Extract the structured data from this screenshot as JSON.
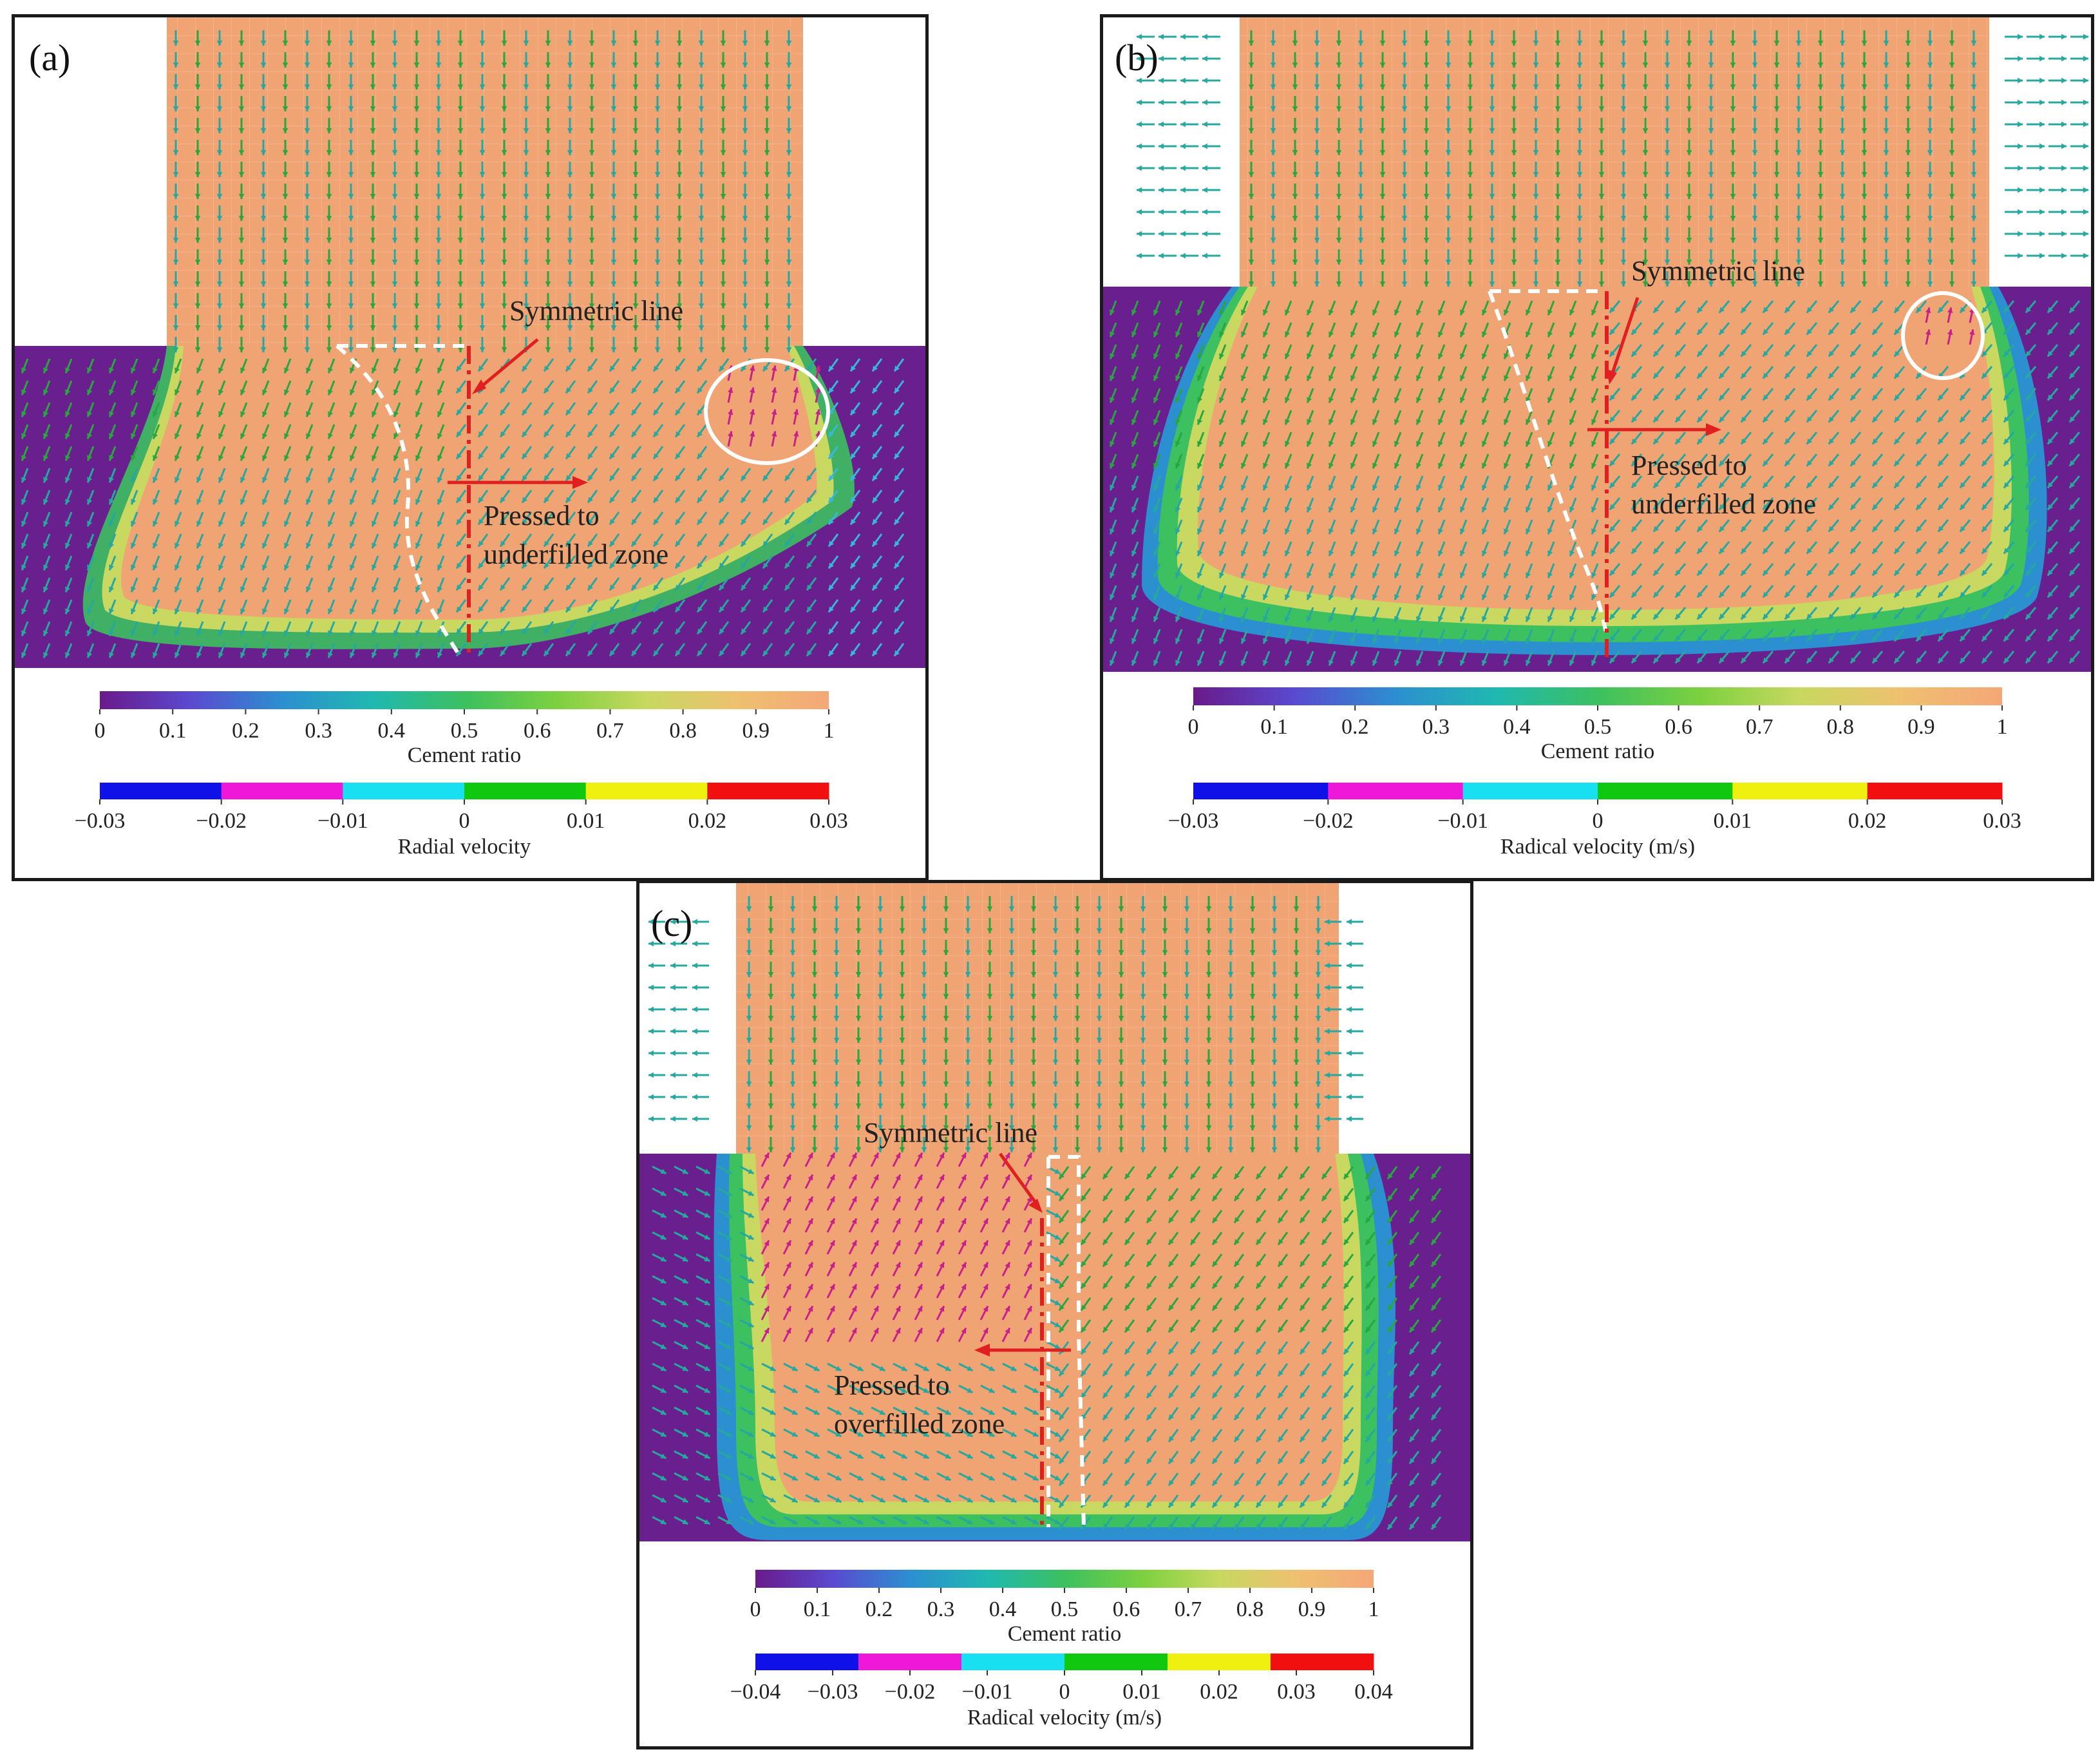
{
  "colors": {
    "cement_high": "#f0a373",
    "cement_low": "#6a1f8e",
    "dashed_white": "#ffffff",
    "symmetric_red": "#e02020",
    "arrow_green": "#2aa640",
    "arrow_teal": "#2aa6a0",
    "arrow_magenta": "#c8208a"
  },
  "cement_colorbar_stops": [
    "#6a1a8a",
    "#5a4ad0",
    "#2c8fd0",
    "#20b8b0",
    "#3cc060",
    "#7cd040",
    "#c8d860",
    "#eec070",
    "#f5a777"
  ],
  "panels": [
    {
      "id": "a",
      "label": "(a)",
      "annotations": {
        "symmetric": "Symmetric line",
        "pressed_1": "Pressed to",
        "pressed_2": "underfilled zone"
      },
      "cement_colorbar": {
        "title": "Cement ratio",
        "ticks": [
          "0",
          "0.1",
          "0.2",
          "0.3",
          "0.4",
          "0.5",
          "0.6",
          "0.7",
          "0.8",
          "0.9",
          "1"
        ]
      },
      "velocity_colorbar": {
        "title": "Radial velocity",
        "ticks": [
          "−0.03",
          "−0.02",
          "−0.01",
          "0",
          "0.01",
          "0.02",
          "0.03"
        ],
        "segments": [
          "#1010e8",
          "#f018d8",
          "#18e0f0",
          "#10c810",
          "#f0f010",
          "#f01010"
        ]
      }
    },
    {
      "id": "b",
      "label": "(b)",
      "annotations": {
        "symmetric": "Symmetric line",
        "pressed_1": "Pressed to",
        "pressed_2": "underfilled zone"
      },
      "cement_colorbar": {
        "title": "Cement ratio",
        "ticks": [
          "0",
          "0.1",
          "0.2",
          "0.3",
          "0.4",
          "0.5",
          "0.6",
          "0.7",
          "0.8",
          "0.9",
          "1"
        ]
      },
      "velocity_colorbar": {
        "title": "Radical velocity (m/s)",
        "ticks": [
          "−0.03",
          "−0.02",
          "−0.01",
          "0",
          "0.01",
          "0.02",
          "0.03"
        ],
        "segments": [
          "#1010e8",
          "#f018d8",
          "#18e0f0",
          "#10c810",
          "#f0f010",
          "#f01010"
        ]
      }
    },
    {
      "id": "c",
      "label": "(c)",
      "annotations": {
        "symmetric": "Symmetric line",
        "pressed_1": "Pressed to",
        "pressed_2": "overfilled zone"
      },
      "cement_colorbar": {
        "title": "Cement ratio",
        "ticks": [
          "0",
          "0.1",
          "0.2",
          "0.3",
          "0.4",
          "0.5",
          "0.6",
          "0.7",
          "0.8",
          "0.9",
          "1"
        ]
      },
      "velocity_colorbar": {
        "title": "Radical velocity (m/s)",
        "ticks": [
          "−0.04",
          "−0.03",
          "−0.02",
          "−0.01",
          "0",
          "0.01",
          "0.02",
          "0.03",
          "0.04"
        ],
        "segments": [
          "#1010e8",
          "#f018d8",
          "#18e0f0",
          "#10c810",
          "#f0f010",
          "#f01010"
        ]
      }
    }
  ]
}
